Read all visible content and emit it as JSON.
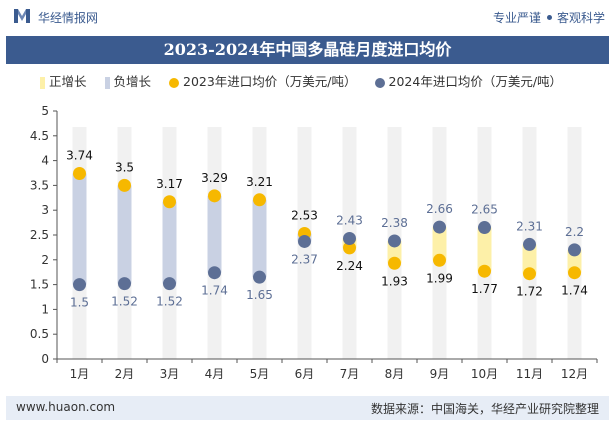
{
  "header": {
    "brand": "华经情报网",
    "tagline_left": "专业严谨",
    "tagline_right": "客观科学"
  },
  "title": "2023-2024年中国多晶硅月度进口均价",
  "legend": [
    {
      "label": "正增长",
      "color": "#fdf0a8",
      "shape": "bar"
    },
    {
      "label": "负增长",
      "color": "#c9d1e3",
      "shape": "bar"
    },
    {
      "label": "2023年进口均价（万美元/吨）",
      "color": "#f6b800",
      "shape": "dot"
    },
    {
      "label": "2024年进口均价（万美元/吨）",
      "color": "#5d6f95",
      "shape": "dot"
    }
  ],
  "chart_data": {
    "type": "scatter",
    "categories": [
      "1月",
      "2月",
      "3月",
      "4月",
      "5月",
      "6月",
      "7月",
      "8月",
      "9月",
      "10月",
      "11月",
      "12月"
    ],
    "series": [
      {
        "name": "2023年进口均价（万美元/吨）",
        "values": [
          3.74,
          3.5,
          3.17,
          3.29,
          3.21,
          2.53,
          2.24,
          1.93,
          1.99,
          1.77,
          1.72,
          1.74
        ],
        "color": "#f6b800"
      },
      {
        "name": "2024年进口均价（万美元/吨）",
        "values": [
          1.5,
          1.52,
          1.52,
          1.74,
          1.65,
          2.37,
          2.43,
          2.38,
          2.66,
          2.65,
          2.31,
          2.2
        ],
        "color": "#5d6f95"
      }
    ],
    "yticks": [
      "0",
      "0.5",
      "1",
      "1.5",
      "2",
      "2.5",
      "3",
      "3.5",
      "4",
      "4.5",
      "5"
    ],
    "ylim": [
      0,
      5
    ],
    "positive_color": "#fdf0a8",
    "negative_color": "#c9d1e3",
    "background_column_color": "#f1f1f1",
    "label_color_2023": "#111111",
    "label_color_2024": "#5d6f95",
    "grid": false
  },
  "footer": {
    "site": "www.huaon.com",
    "source": "数据来源：中国海关，华经产业研究院整理"
  }
}
